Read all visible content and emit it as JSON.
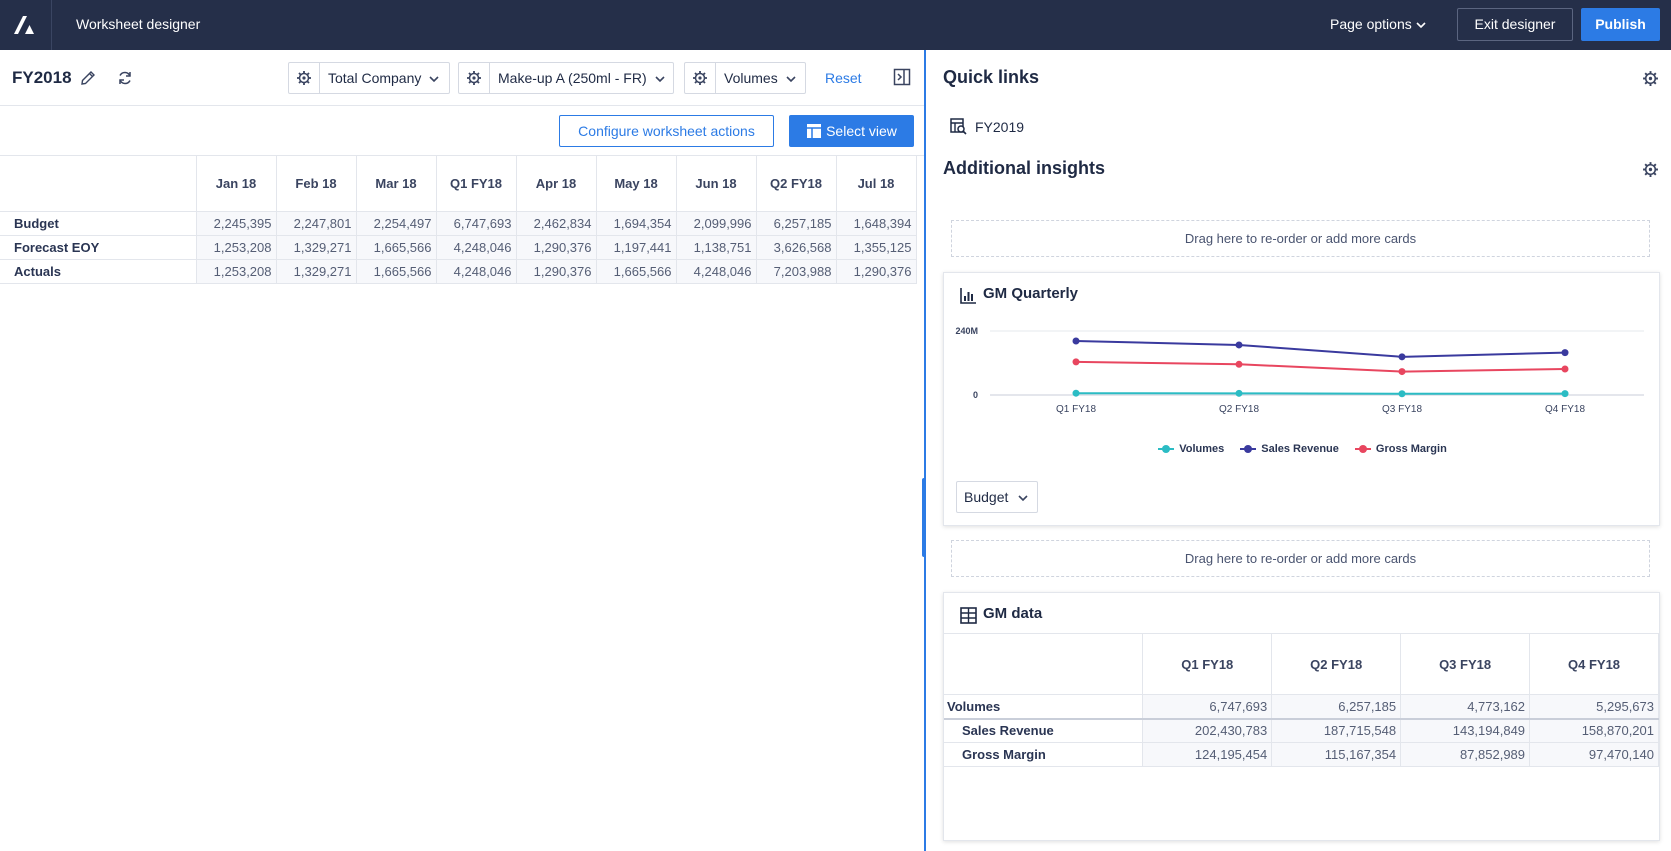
{
  "app": {
    "title": "Worksheet designer"
  },
  "topbar": {
    "page_options": "Page options",
    "exit_label": "Exit designer",
    "publish_label": "Publish"
  },
  "worksheet": {
    "title": "FY2018",
    "filters": [
      {
        "label": "Total Company"
      },
      {
        "label": "Make-up A (250ml - FR)"
      },
      {
        "label": "Volumes"
      }
    ],
    "reset_label": "Reset",
    "configure_label": "Configure worksheet actions",
    "select_view_label": "Select view",
    "grid": {
      "columns": [
        "Jan 18",
        "Feb 18",
        "Mar 18",
        "Q1 FY18",
        "Apr 18",
        "May 18",
        "Jun 18",
        "Q2 FY18",
        "Jul 18"
      ],
      "rows": [
        {
          "label": "Budget",
          "values": [
            "2,245,395",
            "2,247,801",
            "2,254,497",
            "6,747,693",
            "2,462,834",
            "1,694,354",
            "2,099,996",
            "6,257,185",
            "1,648,394"
          ]
        },
        {
          "label": "Forecast EOY",
          "values": [
            "1,253,208",
            "1,329,271",
            "1,665,566",
            "4,248,046",
            "1,290,376",
            "1,197,441",
            "1,138,751",
            "3,626,568",
            "1,355,125"
          ]
        },
        {
          "label": "Actuals",
          "values": [
            "1,253,208",
            "1,329,271",
            "1,665,566",
            "4,248,046",
            "1,290,376",
            "1,665,566",
            "4,248,046",
            "7,203,988",
            "1,290,376"
          ]
        }
      ]
    }
  },
  "panel": {
    "quick_links_title": "Quick links",
    "quick_link": "FY2019",
    "insights_title": "Additional insights",
    "dropzone_text": "Drag here to re-order or add more cards",
    "gm_quarterly": {
      "title": "GM Quarterly",
      "dropdown": "Budget"
    },
    "gm_data": {
      "title": "GM data",
      "columns": [
        "Q1 FY18",
        "Q2 FY18",
        "Q3 FY18",
        "Q4 FY18"
      ],
      "rows": [
        {
          "label": "Volumes",
          "values": [
            "6,747,693",
            "6,257,185",
            "4,773,162",
            "5,295,673"
          ]
        },
        {
          "label": "Sales Revenue",
          "values": [
            "202,430,783",
            "187,715,548",
            "143,194,849",
            "158,870,201"
          ]
        },
        {
          "label": "Gross Margin",
          "values": [
            "124,195,454",
            "115,167,354",
            "87,852,989",
            "97,470,140"
          ]
        }
      ]
    }
  },
  "chart_data": {
    "type": "line",
    "title": "GM Quarterly",
    "categories": [
      "Q1 FY18",
      "Q2 FY18",
      "Q3 FY18",
      "Q4 FY18"
    ],
    "y_ticks": [
      "240M",
      "0"
    ],
    "ylim": [
      0,
      270000000
    ],
    "legend_position": "bottom",
    "series": [
      {
        "name": "Volumes",
        "color": "#2bbcc4",
        "values": [
          6747693,
          6257185,
          4773162,
          5295673
        ]
      },
      {
        "name": "Sales Revenue",
        "color": "#3a3a9e",
        "values": [
          202430783,
          187715548,
          143194849,
          158870201
        ]
      },
      {
        "name": "Gross Margin",
        "color": "#e8465f",
        "values": [
          124195454,
          115167354,
          87852989,
          97470140
        ]
      }
    ]
  }
}
